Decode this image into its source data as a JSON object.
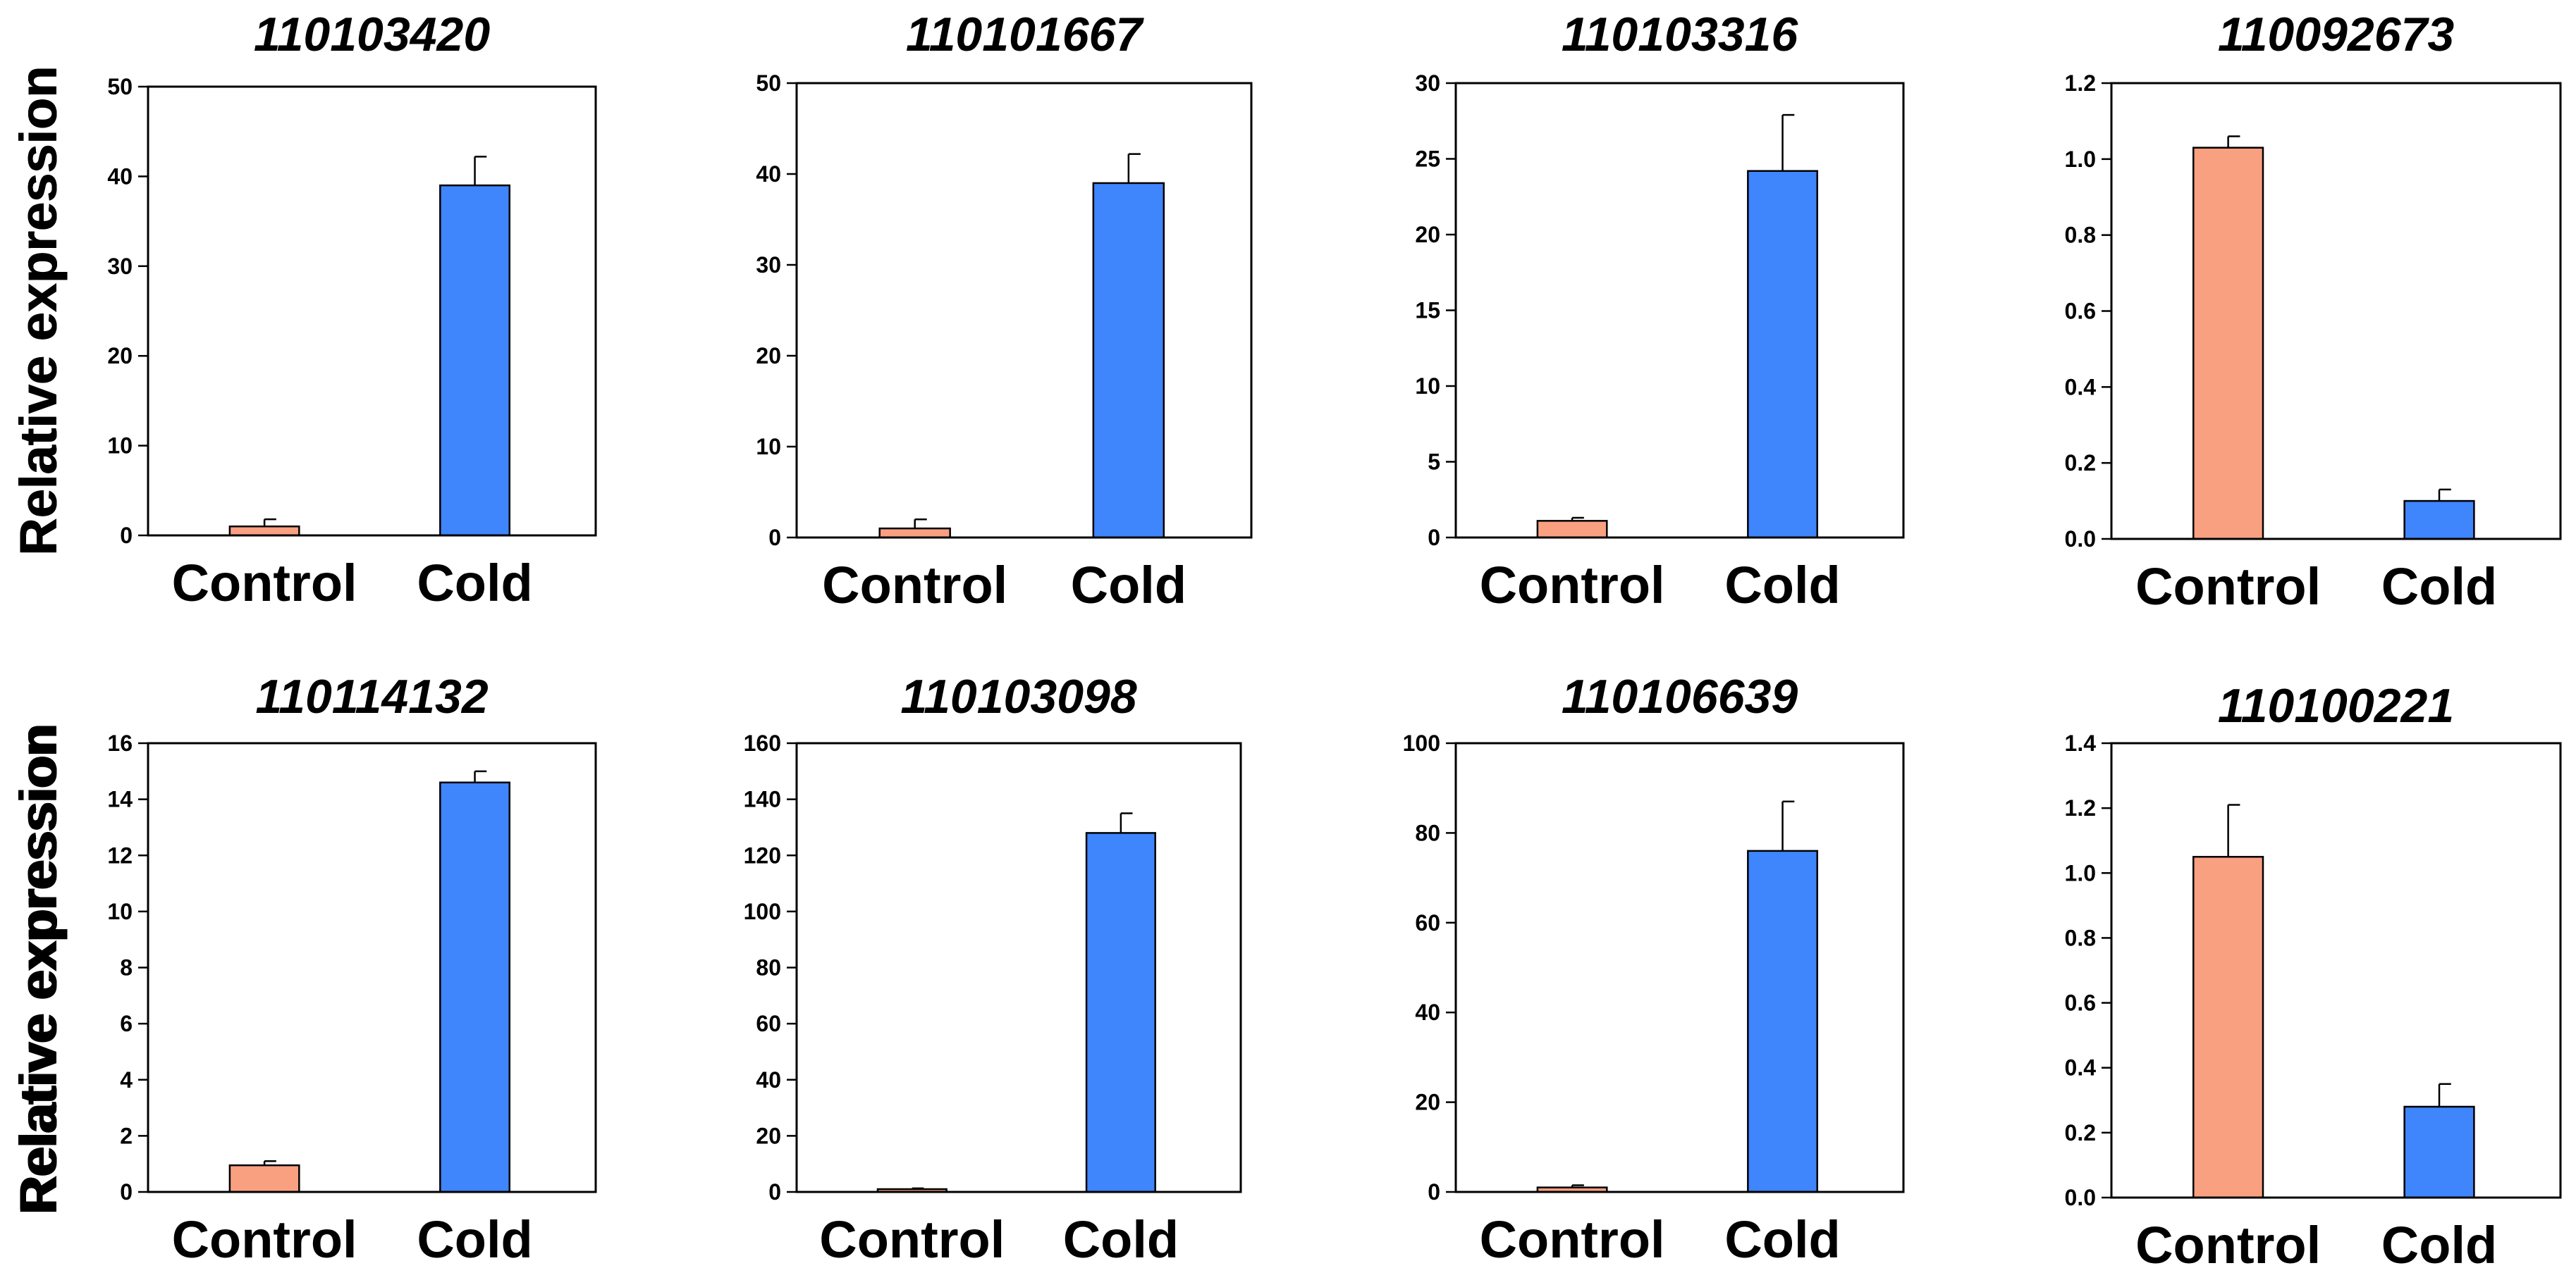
{
  "colors": {
    "control": "#F9A081",
    "cold": "#3F85FC"
  },
  "chart_data": [
    {
      "type": "bar",
      "title": "110103420",
      "ylabel": "Relative expression",
      "categories": [
        "Control",
        "Cold"
      ],
      "values": [
        1.0,
        39.0
      ],
      "errors": [
        0.8,
        3.2
      ],
      "ylim": [
        0,
        50
      ],
      "yticks": [
        0,
        10,
        20,
        30,
        40,
        50
      ],
      "ytick_labels": [
        "0",
        "10",
        "20",
        "30",
        "40",
        "50"
      ]
    },
    {
      "type": "bar",
      "title": "110101667",
      "ylabel": "Relative expression",
      "categories": [
        "Control",
        "Cold"
      ],
      "values": [
        1.0,
        39.0
      ],
      "errors": [
        1.0,
        3.2
      ],
      "ylim": [
        0,
        50
      ],
      "yticks": [
        0,
        10,
        20,
        30,
        40,
        50
      ],
      "ytick_labels": [
        "0",
        "10",
        "20",
        "30",
        "40",
        "50"
      ]
    },
    {
      "type": "bar",
      "title": "110103316",
      "ylabel": "Relative expression",
      "categories": [
        "Control",
        "Cold"
      ],
      "values": [
        1.1,
        24.2
      ],
      "errors": [
        0.2,
        3.7
      ],
      "ylim": [
        0,
        30
      ],
      "yticks": [
        0,
        5,
        10,
        15,
        20,
        25,
        30
      ],
      "ytick_labels": [
        "0",
        "5",
        "10",
        "15",
        "20",
        "25",
        "30"
      ]
    },
    {
      "type": "bar",
      "title": "110092673",
      "ylabel": "Relative expression",
      "categories": [
        "Control",
        "Cold"
      ],
      "values": [
        1.03,
        0.1
      ],
      "errors": [
        0.03,
        0.03
      ],
      "ylim": [
        0,
        1.2
      ],
      "yticks": [
        0,
        0.2,
        0.4,
        0.6,
        0.8,
        1.0,
        1.2
      ],
      "ytick_labels": [
        "0.0",
        "0.2",
        "0.4",
        "0.6",
        "0.8",
        "1.0",
        "1.2"
      ]
    },
    {
      "type": "bar",
      "title": "110114132",
      "ylabel": "Relative expression",
      "categories": [
        "Control",
        "Cold"
      ],
      "values": [
        0.95,
        14.6
      ],
      "errors": [
        0.15,
        0.4
      ],
      "ylim": [
        0,
        16
      ],
      "yticks": [
        0,
        2,
        4,
        6,
        8,
        10,
        12,
        14,
        16
      ],
      "ytick_labels": [
        "0",
        "2",
        "4",
        "6",
        "8",
        "10",
        "12",
        "14",
        "16"
      ]
    },
    {
      "type": "bar",
      "title": "110103098",
      "ylabel": "Relative expression",
      "categories": [
        "Control",
        "Cold"
      ],
      "values": [
        1.0,
        128.0
      ],
      "errors": [
        0.3,
        7.0
      ],
      "ylim": [
        0,
        160
      ],
      "yticks": [
        0,
        20,
        40,
        60,
        80,
        100,
        120,
        140,
        160
      ],
      "ytick_labels": [
        "0",
        "20",
        "40",
        "60",
        "80",
        "100",
        "120",
        "140",
        "160"
      ]
    },
    {
      "type": "bar",
      "title": "110106639",
      "ylabel": "Relative expression",
      "categories": [
        "Control",
        "Cold"
      ],
      "values": [
        1.0,
        76.0
      ],
      "errors": [
        0.5,
        11.0
      ],
      "ylim": [
        0,
        100
      ],
      "yticks": [
        0,
        20,
        40,
        60,
        80,
        100
      ],
      "ytick_labels": [
        "0",
        "20",
        "40",
        "60",
        "80",
        "100"
      ]
    },
    {
      "type": "bar",
      "title": "110100221",
      "ylabel": "Relative expression",
      "categories": [
        "Control",
        "Cold"
      ],
      "values": [
        1.05,
        0.28
      ],
      "errors": [
        0.16,
        0.07
      ],
      "ylim": [
        0,
        1.4
      ],
      "yticks": [
        0,
        0.2,
        0.4,
        0.6,
        0.8,
        1.0,
        1.2,
        1.4
      ],
      "ytick_labels": [
        "0.0",
        "0.2",
        "0.4",
        "0.6",
        "0.8",
        "1.0",
        "1.2",
        "1.4"
      ]
    }
  ]
}
